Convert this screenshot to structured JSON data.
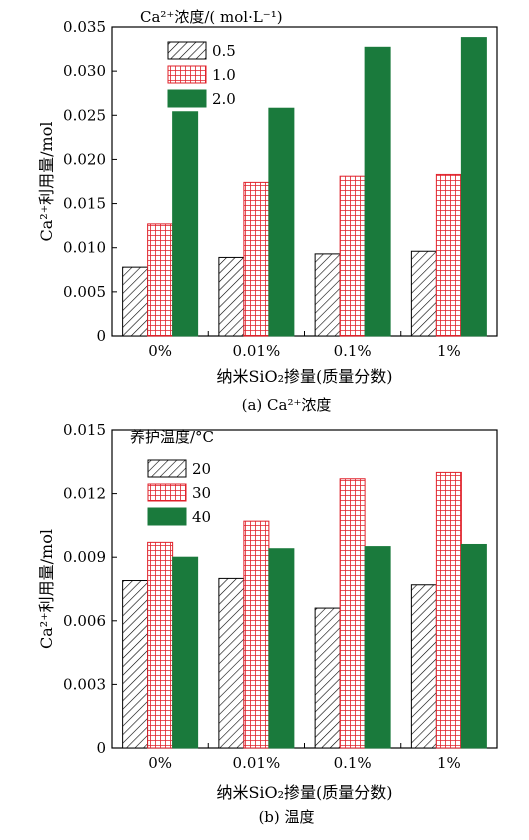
{
  "colors": {
    "series_0": "#ffffff",
    "series_1": "#ffffff",
    "series_2": "#1a7a3c",
    "grid_red": "#e0202a",
    "hatch_black": "#000000"
  },
  "chart_data": [
    {
      "type": "bar",
      "caption": "(a) Ca²⁺浓度",
      "ylabel": "Ca²⁺利用量/mol",
      "xlabel": "纳米SiO₂掺量(质量分数)",
      "legend_title": "Ca²⁺浓度/( mol·L⁻¹)",
      "legend_position": "top-left",
      "categories": [
        "0%",
        "0.01%",
        "0.1%",
        "1%"
      ],
      "ylim": [
        0,
        0.035
      ],
      "yticks": [
        "0",
        "0.005",
        "0.010",
        "0.015",
        "0.020",
        "0.025",
        "0.030",
        "0.035"
      ],
      "ytick_values": [
        0,
        0.005,
        0.01,
        0.015,
        0.02,
        0.025,
        0.03,
        0.035
      ],
      "series": [
        {
          "name": "0.5",
          "pattern": "hatch",
          "values": [
            0.0078,
            0.0089,
            0.0093,
            0.0096
          ]
        },
        {
          "name": "1.0",
          "pattern": "grid",
          "values": [
            0.0127,
            0.0174,
            0.0181,
            0.0183
          ]
        },
        {
          "name": "2.0",
          "pattern": "solid",
          "values": [
            0.0254,
            0.0258,
            0.0327,
            0.0338
          ]
        }
      ]
    },
    {
      "type": "bar",
      "caption": "(b) 温度",
      "ylabel": "Ca²⁺利用量/mol",
      "xlabel": "纳米SiO₂掺量(质量分数)",
      "legend_title": "养护温度/°C",
      "legend_position": "top-left",
      "categories": [
        "0%",
        "0.01%",
        "0.1%",
        "1%"
      ],
      "ylim": [
        0,
        0.015
      ],
      "yticks": [
        "0",
        "0.003",
        "0.006",
        "0.009",
        "0.012",
        "0.015"
      ],
      "ytick_values": [
        0,
        0.003,
        0.006,
        0.009,
        0.012,
        0.015
      ],
      "series": [
        {
          "name": "20",
          "pattern": "hatch",
          "values": [
            0.0079,
            0.008,
            0.0066,
            0.0077
          ]
        },
        {
          "name": "30",
          "pattern": "grid",
          "values": [
            0.0097,
            0.0107,
            0.0127,
            0.013
          ]
        },
        {
          "name": "40",
          "pattern": "solid",
          "values": [
            0.009,
            0.0094,
            0.0095,
            0.0096
          ]
        }
      ]
    }
  ]
}
